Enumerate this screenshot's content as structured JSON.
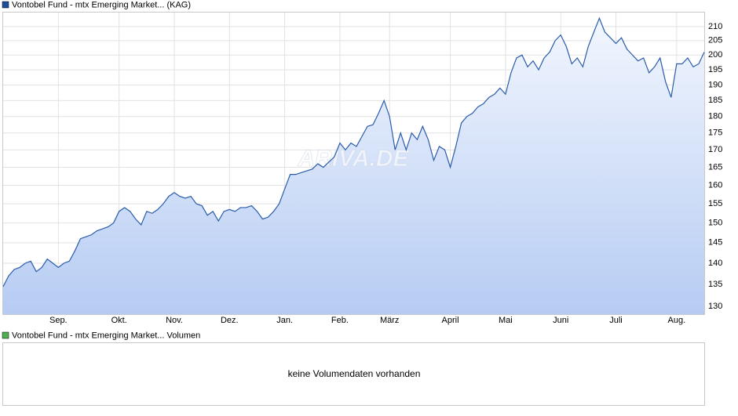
{
  "chart_data": {
    "type": "area",
    "legend": "Vontobel Fund - mtx Emerging Market... (KAG)",
    "legend_color": "#1f4e9c",
    "watermark": "ARIVA.DE",
    "categories": [
      null,
      null,
      null,
      null,
      null,
      null,
      null,
      null,
      null,
      null,
      "Sep.",
      null,
      null,
      null,
      null,
      null,
      null,
      null,
      null,
      null,
      null,
      "Okt.",
      null,
      null,
      null,
      null,
      null,
      null,
      null,
      null,
      null,
      "Nov.",
      null,
      null,
      null,
      null,
      null,
      null,
      null,
      null,
      null,
      "Dez.",
      null,
      null,
      null,
      null,
      null,
      null,
      null,
      null,
      null,
      "Jan.",
      null,
      null,
      null,
      null,
      null,
      null,
      null,
      null,
      null,
      "Feb.",
      null,
      null,
      null,
      null,
      null,
      null,
      null,
      null,
      "März",
      null,
      null,
      null,
      null,
      null,
      null,
      null,
      null,
      null,
      null,
      "April",
      null,
      null,
      null,
      null,
      null,
      null,
      null,
      null,
      null,
      "Mai",
      null,
      null,
      null,
      null,
      null,
      null,
      null,
      null,
      null,
      "Juni",
      null,
      null,
      null,
      null,
      null,
      null,
      null,
      null,
      null,
      "Juli",
      null,
      null,
      null,
      null,
      null,
      null,
      null,
      null,
      null,
      null,
      "Aug.",
      null,
      null,
      null,
      null,
      null
    ],
    "series": [
      {
        "name": "Vontobel Fund - mtx Emerging Market... (KAG)",
        "color": "#2a5caa",
        "values": [
          134.5,
          137,
          138.5,
          139,
          140,
          140.5,
          138,
          139,
          141,
          140,
          139,
          140,
          140.5,
          143,
          146,
          146.5,
          147,
          148,
          148.5,
          149,
          150,
          153,
          154,
          153,
          151,
          149.5,
          153,
          152.5,
          153.5,
          155,
          157,
          158,
          157,
          156.5,
          157,
          155,
          154.5,
          152,
          153,
          150.5,
          153,
          153.5,
          153,
          154,
          154,
          154.5,
          153,
          151,
          151.5,
          153,
          155,
          159,
          163,
          163,
          163.5,
          164,
          164.5,
          166,
          165,
          166.5,
          168,
          172,
          170,
          172,
          171,
          174,
          177,
          177.5,
          181,
          185,
          180,
          170,
          175,
          170,
          175,
          173,
          177,
          173,
          167,
          171,
          170,
          165,
          171,
          178,
          180,
          181,
          183,
          184,
          186,
          187,
          189,
          187,
          194,
          199,
          200,
          196,
          198,
          195,
          199,
          201,
          205,
          207,
          203,
          197,
          199,
          196,
          203,
          208,
          213,
          208,
          206,
          204,
          206,
          202,
          200,
          198,
          199,
          194,
          196,
          199,
          191,
          186,
          197,
          197,
          199,
          196,
          197,
          201
        ]
      }
    ],
    "ylim": [
      128.3,
      215.1
    ],
    "yticks": [
      130,
      135,
      140,
      145,
      150,
      155,
      160,
      165,
      170,
      175,
      180,
      185,
      190,
      195,
      200,
      205,
      210
    ],
    "log_scale": true,
    "grid": true
  },
  "volume_panel": {
    "legend": "Vontobel Fund - mtx Emerging Market... Volumen",
    "legend_color": "#4caf50",
    "message": "keine Volumendaten vorhanden"
  }
}
